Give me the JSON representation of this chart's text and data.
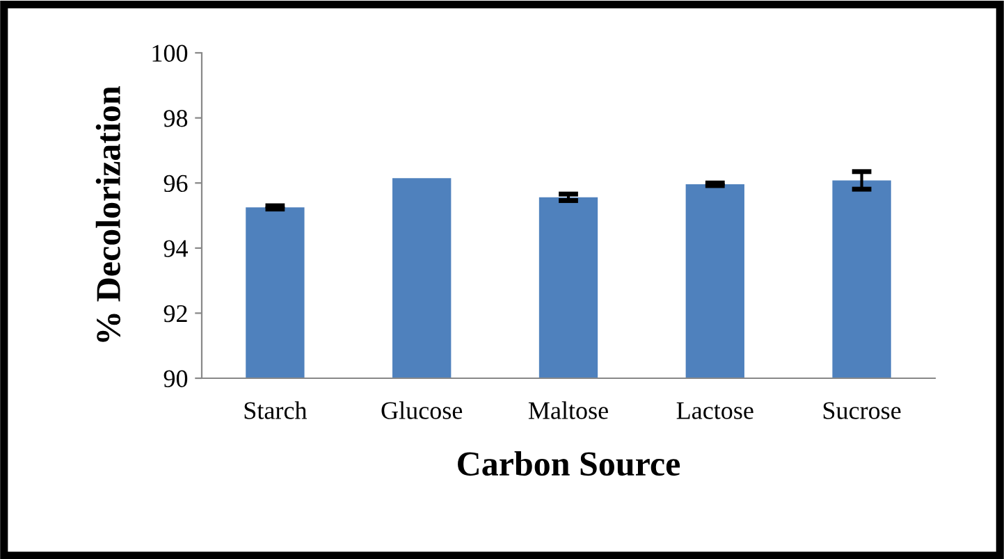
{
  "chart_data": {
    "type": "bar",
    "xlabel": "Carbon Source",
    "ylabel": "% Decolorization",
    "categories": [
      "Starch",
      "Glucose",
      "Maltose",
      "Lactose",
      "Sucrose"
    ],
    "values": [
      95.25,
      96.15,
      95.56,
      95.96,
      96.08
    ],
    "errors": [
      0.05,
      null,
      0.1,
      0.04,
      0.27
    ],
    "color": "#4f81bd",
    "ylim": [
      90,
      100
    ],
    "yticks": [
      90,
      92,
      94,
      96,
      98,
      100
    ],
    "grid": false,
    "legend": false
  }
}
